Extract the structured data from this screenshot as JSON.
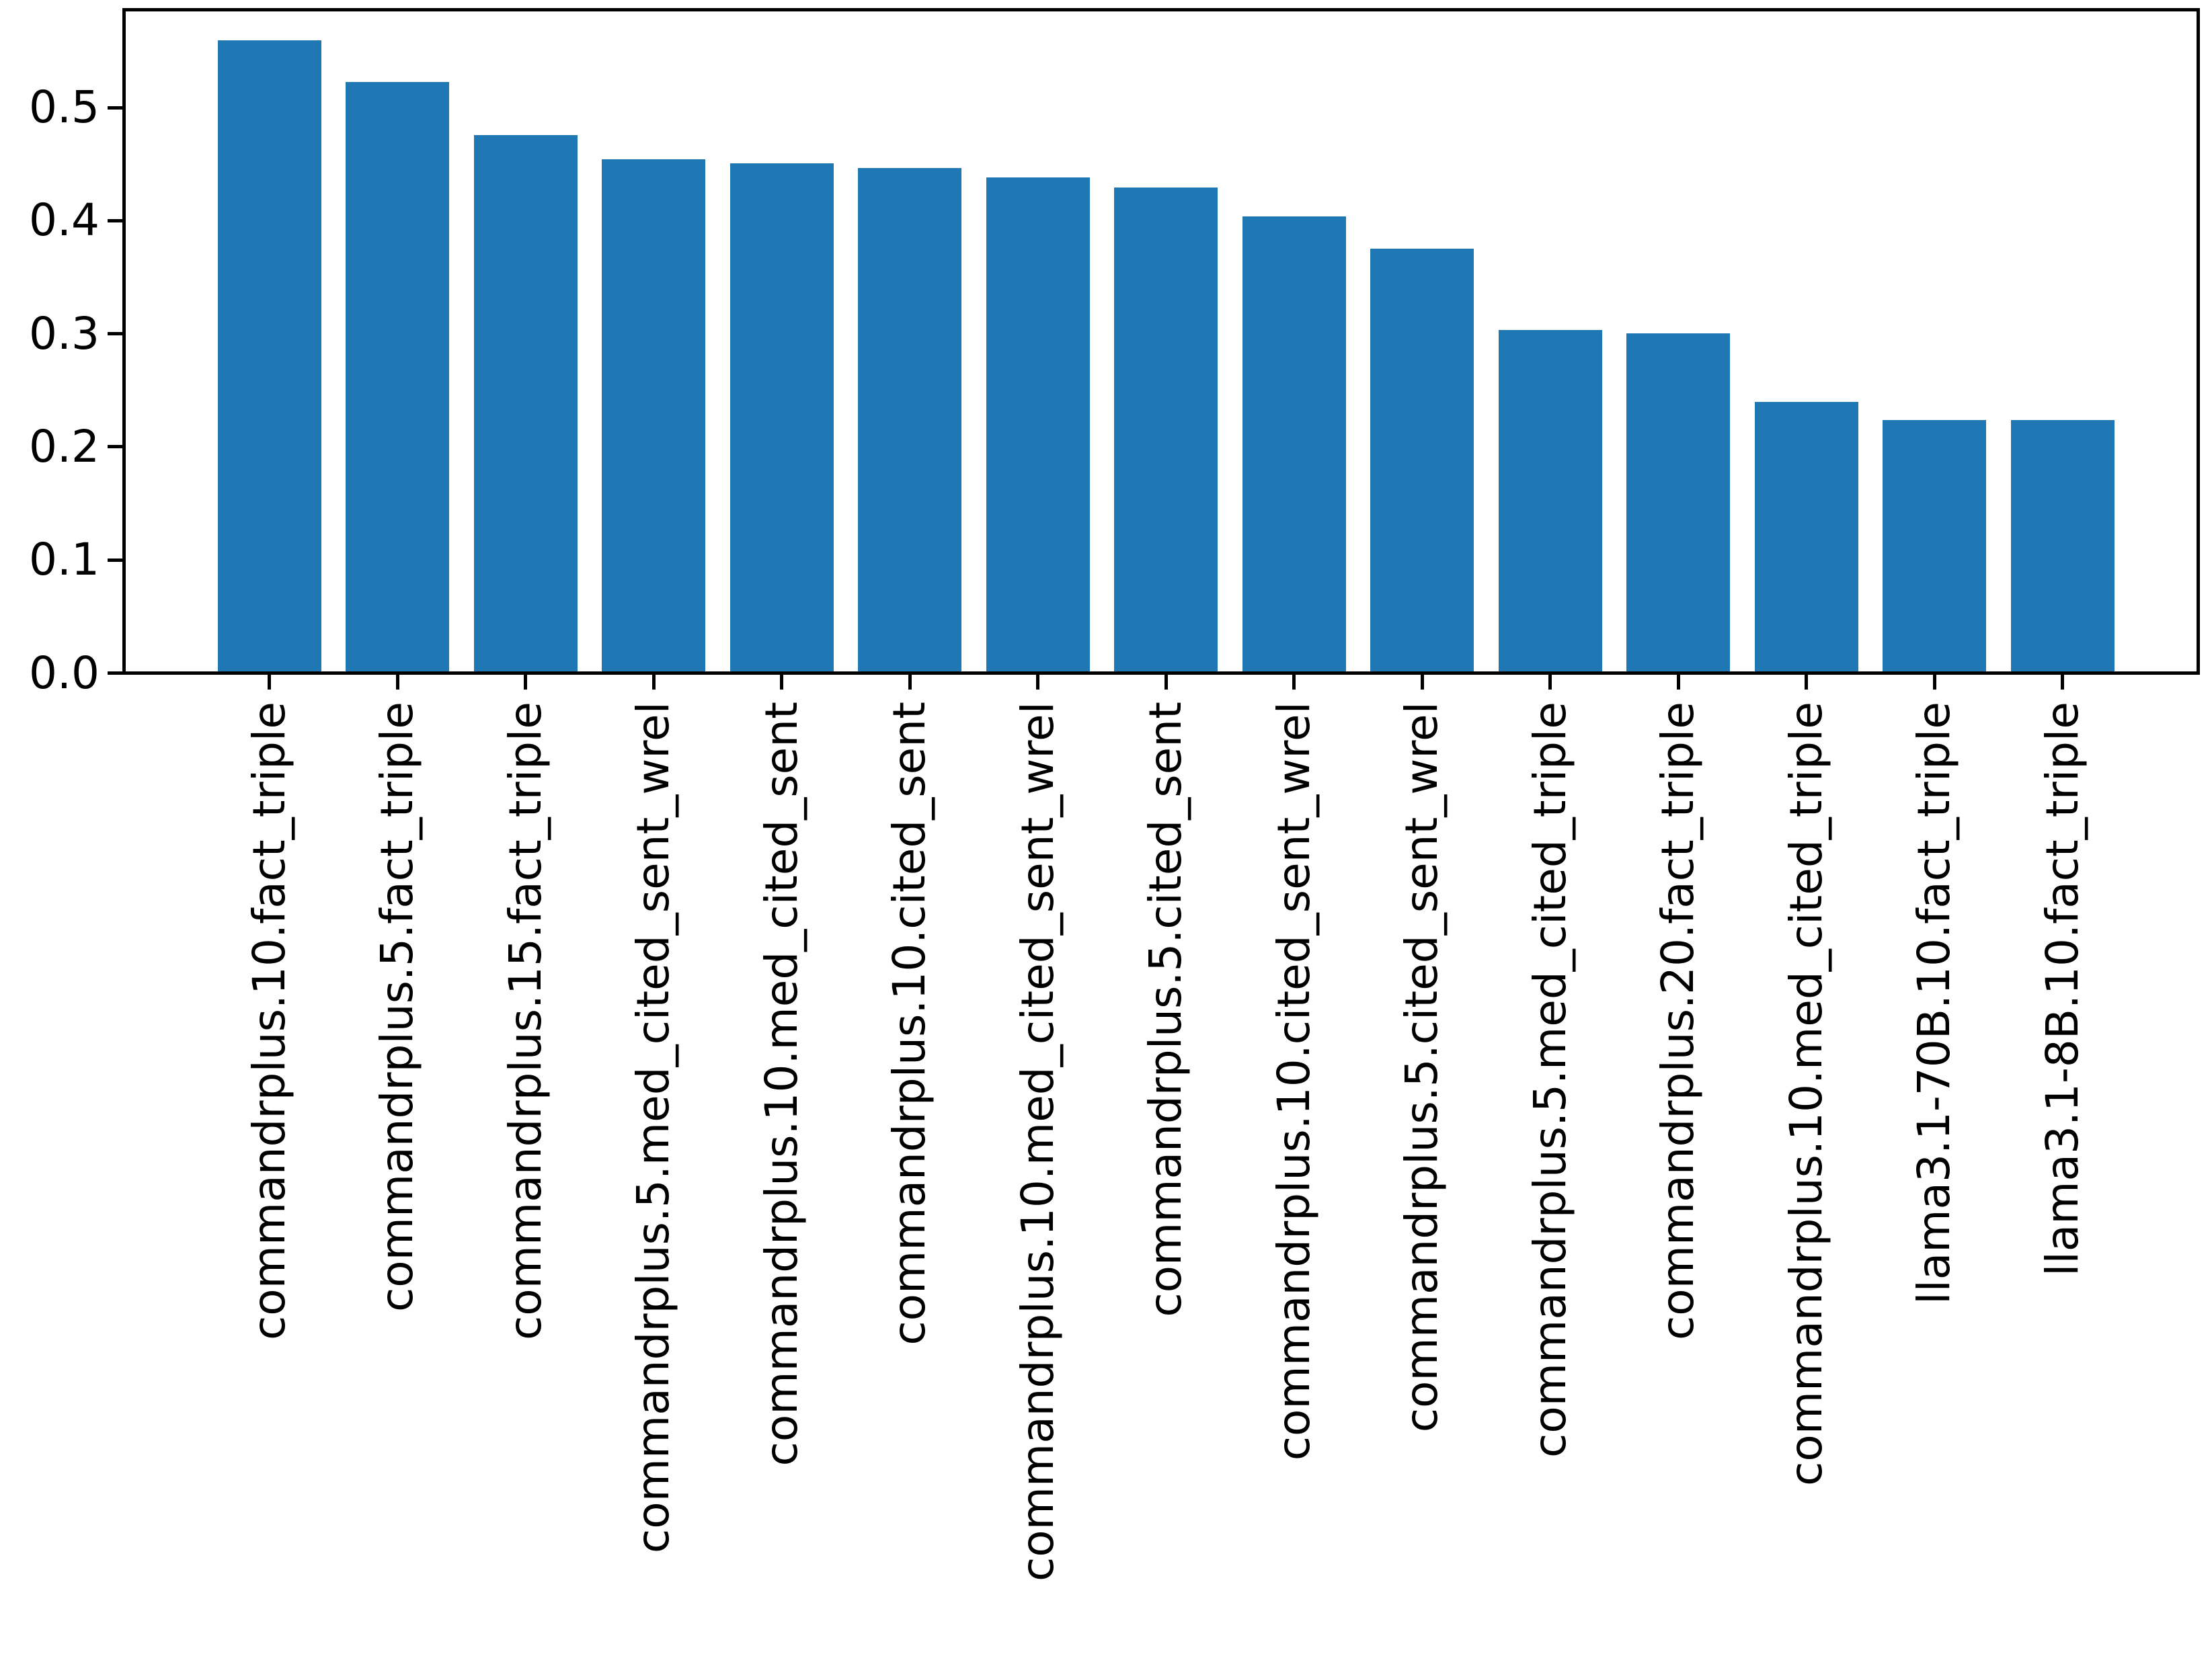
{
  "chart_data": {
    "type": "bar",
    "title": "",
    "xlabel": "",
    "ylabel": "",
    "grid": false,
    "legend_position": "none",
    "bar_color": "#1f77b4",
    "axis_color": "#000000",
    "background_color": "#ffffff",
    "tick_label_rotation_deg": 90,
    "ylim": [
      0.0,
      0.585
    ],
    "ytick_labels": [
      "0.0",
      "0.1",
      "0.2",
      "0.3",
      "0.4",
      "0.5"
    ],
    "ytick_values": [
      0.0,
      0.1,
      0.2,
      0.3,
      0.4,
      0.5
    ],
    "categories": [
      "commandrplus.10.fact_triple",
      "commandrplus.5.fact_triple",
      "commandrplus.15.fact_triple",
      "commandrplus.5.med_cited_sent_wrel",
      "commandrplus.10.med_cited_sent",
      "commandrplus.10.cited_sent",
      "commandrplus.10.med_cited_sent_wrel",
      "commandrplus.5.cited_sent",
      "commandrplus.10.cited_sent_wrel",
      "commandrplus.5.cited_sent_wrel",
      "commandrplus.5.med_cited_triple",
      "commandrplus.20.fact_triple",
      "commandrplus.10.med_cited_triple",
      "llama3.1-70B.10.fact_triple",
      "llama3.1-8B.10.fact_triple"
    ],
    "values": [
      0.558,
      0.521,
      0.474,
      0.453,
      0.449,
      0.445,
      0.437,
      0.428,
      0.402,
      0.374,
      0.302,
      0.299,
      0.238,
      0.222,
      0.222
    ]
  }
}
